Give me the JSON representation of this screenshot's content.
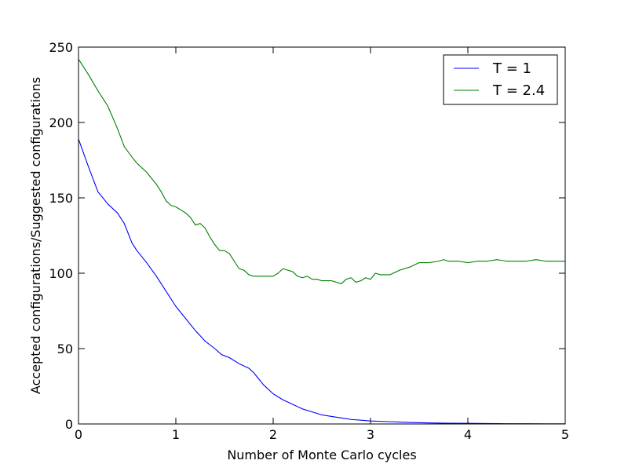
{
  "chart_data": {
    "type": "line",
    "title": "",
    "xlabel": "Number of Monte Carlo cycles",
    "ylabel": "Accepted configurations/Suggested configurations",
    "xlim": [
      0,
      5
    ],
    "ylim": [
      0,
      250
    ],
    "xticks": [
      0,
      1,
      2,
      3,
      4,
      5
    ],
    "yticks": [
      0,
      50,
      100,
      150,
      200,
      250
    ],
    "grid": false,
    "legend": {
      "placement": "upper right"
    },
    "colors": {
      "t1": "#0000ff",
      "t24": "#008000"
    },
    "series": [
      {
        "name": "T = 1",
        "color": "#0000ff",
        "x": [
          0.0,
          0.1,
          0.2,
          0.3,
          0.4,
          0.47,
          0.55,
          0.6,
          0.7,
          0.8,
          0.9,
          1.0,
          1.1,
          1.2,
          1.3,
          1.4,
          1.47,
          1.55,
          1.65,
          1.75,
          1.8,
          1.85,
          1.9,
          2.0,
          2.1,
          2.2,
          2.3,
          2.4,
          2.5,
          2.6,
          2.7,
          2.8,
          2.9,
          3.0,
          3.2,
          3.4,
          3.6,
          3.8,
          4.0,
          4.2,
          4.4,
          4.6,
          4.8,
          5.0
        ],
        "y": [
          189,
          171,
          154,
          146,
          140,
          133,
          120,
          115,
          107,
          98,
          88,
          78,
          70,
          62,
          55,
          50,
          46,
          44,
          40,
          37,
          34,
          30,
          26,
          20,
          16,
          13,
          10,
          8,
          6,
          5,
          4,
          3,
          2.5,
          2,
          1.5,
          1,
          0.7,
          0.5,
          0.4,
          0.3,
          0.2,
          0.2,
          0.1,
          0.1
        ]
      },
      {
        "name": "T = 2.4",
        "color": "#008000",
        "x": [
          0.0,
          0.1,
          0.2,
          0.3,
          0.4,
          0.47,
          0.55,
          0.6,
          0.7,
          0.8,
          0.85,
          0.9,
          0.95,
          1.0,
          1.1,
          1.15,
          1.2,
          1.25,
          1.3,
          1.35,
          1.4,
          1.45,
          1.5,
          1.55,
          1.65,
          1.7,
          1.75,
          1.8,
          1.9,
          2.0,
          2.05,
          2.1,
          2.15,
          2.2,
          2.25,
          2.3,
          2.35,
          2.4,
          2.45,
          2.5,
          2.6,
          2.7,
          2.75,
          2.8,
          2.85,
          2.9,
          2.95,
          3.0,
          3.05,
          3.1,
          3.2,
          3.3,
          3.4,
          3.5,
          3.6,
          3.7,
          3.75,
          3.8,
          3.9,
          4.0,
          4.1,
          4.2,
          4.3,
          4.4,
          4.5,
          4.6,
          4.7,
          4.8,
          4.9,
          5.0
        ],
        "y": [
          242,
          232,
          221,
          211,
          196,
          184,
          177,
          173,
          167,
          159,
          154,
          148,
          145,
          144,
          140,
          137,
          132,
          133,
          130,
          124,
          119,
          115,
          115,
          113,
          103,
          102,
          99,
          98,
          98,
          98,
          100,
          103,
          102,
          101,
          98,
          97,
          98,
          96,
          96,
          95,
          95,
          93,
          96,
          97,
          94,
          95,
          97,
          96,
          100,
          99,
          99,
          102,
          104,
          107,
          107,
          108,
          109,
          108,
          108,
          107,
          108,
          108,
          109,
          108,
          108,
          108,
          109,
          108,
          108,
          108
        ]
      }
    ]
  }
}
